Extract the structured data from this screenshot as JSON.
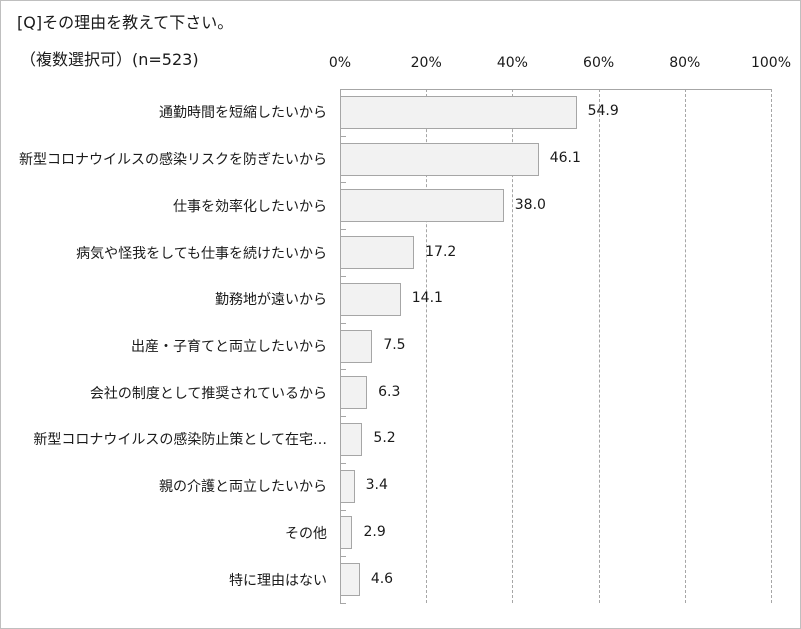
{
  "title": "[Q]その理由を教えて下さい。",
  "subtitle": "（複数選択可）(n=523)",
  "chart_data": {
    "type": "bar",
    "orientation": "horizontal",
    "title": "[Q]その理由を教えて下さい。",
    "subtitle": "（複数選択可）(n=523)",
    "xlabel": "",
    "ylabel": "",
    "xlim": [
      0,
      100
    ],
    "x_ticks": [
      "0%",
      "20%",
      "40%",
      "60%",
      "80%",
      "100%"
    ],
    "grid": "vertical dashed",
    "legend": "none",
    "bar_color": "#f2f2f2",
    "bar_edge_color": "#a6a6a6",
    "categories": [
      "通勤時間を短縮したいから",
      "新型コロナウイルスの感染リスクを防ぎたいから",
      "仕事を効率化したいから",
      "病気や怪我をしても仕事を続けたいから",
      "勤務地が遠いから",
      "出産・子育てと両立したいから",
      "会社の制度として推奨されているから",
      "新型コロナウイルスの感染防止策として在宅…",
      "親の介護と両立したいから",
      "その他",
      "特に理由はない"
    ],
    "values": [
      54.9,
      46.1,
      38.0,
      17.2,
      14.1,
      7.5,
      6.3,
      5.2,
      3.4,
      2.9,
      4.6
    ],
    "value_labels": [
      "54.9",
      "46.1",
      "38.0",
      "17.2",
      "14.1",
      "7.5",
      "6.3",
      "5.2",
      "3.4",
      "2.9",
      "4.6"
    ]
  }
}
